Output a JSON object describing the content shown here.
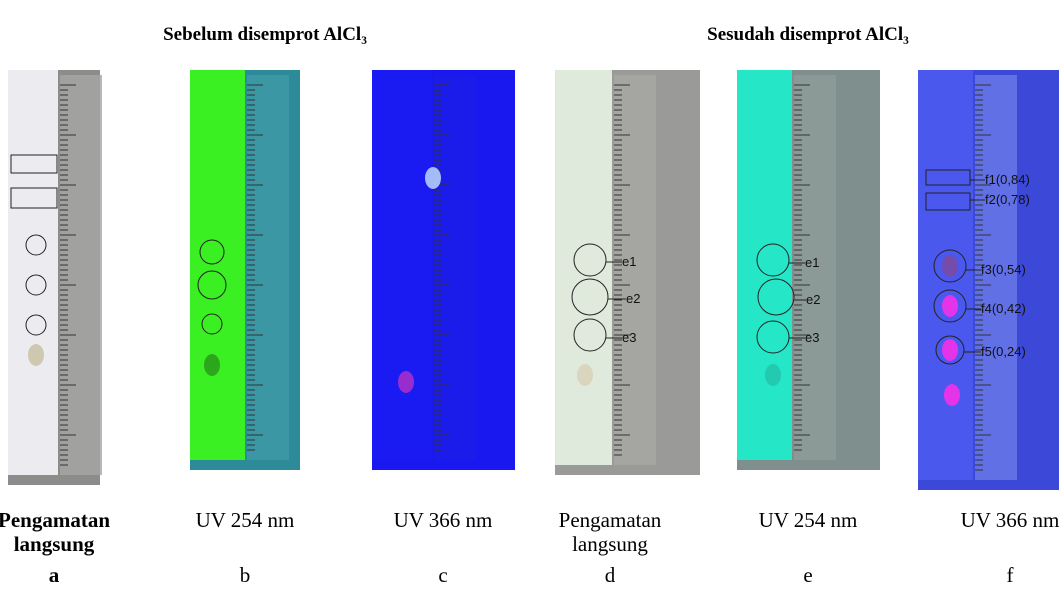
{
  "headings": [
    "Sebelum disemprot AlCl₃",
    "Sesudah disemprot AlCl₃"
  ],
  "panels": [
    {
      "caption": [
        "Pengamatan",
        "langsung"
      ],
      "letter": "a"
    },
    {
      "caption": [
        "UV 254 nm"
      ],
      "letter": "b"
    },
    {
      "caption": [
        "UV 366 nm"
      ],
      "letter": "c"
    },
    {
      "caption": [
        "Pengamatan",
        "langsung"
      ],
      "letter": "d",
      "spot_labels": [
        "e1",
        "e2",
        "e3"
      ]
    },
    {
      "caption": [
        "UV 254 nm"
      ],
      "letter": "e",
      "spot_labels": [
        "e1",
        "e2",
        "e3"
      ]
    },
    {
      "caption": [
        "UV 366 nm"
      ],
      "letter": "f",
      "spot_labels": [
        "f1(0,84)",
        "f2(0,78)",
        "f3(0,54)",
        "f4(0,42)",
        "f5(0,24)"
      ]
    }
  ]
}
